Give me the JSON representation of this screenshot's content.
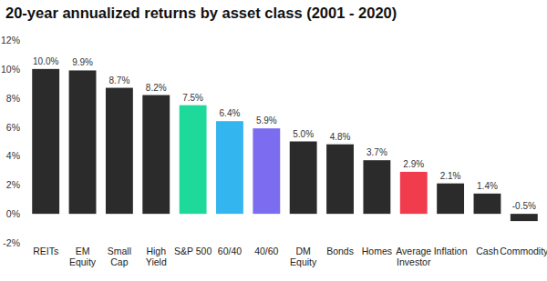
{
  "chart_data": {
    "type": "bar",
    "title": "20-year annualized returns by asset class (2001 - 2020)",
    "categories": [
      "REITs",
      "EM Equity",
      "Small Cap",
      "High Yield",
      "S&P 500",
      "60/40",
      "40/60",
      "DM Equity",
      "Bonds",
      "Homes",
      "Average Investor",
      "Inflation",
      "Cash",
      "Commodity"
    ],
    "values": [
      10.0,
      9.9,
      8.7,
      8.2,
      7.5,
      6.4,
      5.9,
      5.0,
      4.8,
      3.7,
      2.9,
      2.1,
      1.4,
      -0.5
    ],
    "value_labels": [
      "10.0%",
      "9.9%",
      "8.7%",
      "8.2%",
      "7.5%",
      "6.4%",
      "5.9%",
      "5.0%",
      "4.8%",
      "3.7%",
      "2.9%",
      "2.1%",
      "1.4%",
      "-0.5%"
    ],
    "colors": [
      "#2b2b2b",
      "#2b2b2b",
      "#2b2b2b",
      "#2b2b2b",
      "#1fd99a",
      "#33b5f0",
      "#7b6cf0",
      "#2b2b2b",
      "#2b2b2b",
      "#2b2b2b",
      "#f03c4c",
      "#2b2b2b",
      "#2b2b2b",
      "#2b2b2b"
    ],
    "ylim": [
      -2,
      12
    ],
    "yticks": [
      {
        "value": -2,
        "label": "-2%"
      },
      {
        "value": 0,
        "label": "0%"
      },
      {
        "value": 2,
        "label": "2%"
      },
      {
        "value": 4,
        "label": "4%"
      },
      {
        "value": 6,
        "label": "6%"
      },
      {
        "value": 8,
        "label": "8%"
      },
      {
        "value": 10,
        "label": "10%"
      },
      {
        "value": 12,
        "label": "12%"
      }
    ],
    "grid": false,
    "data_labels": true
  }
}
